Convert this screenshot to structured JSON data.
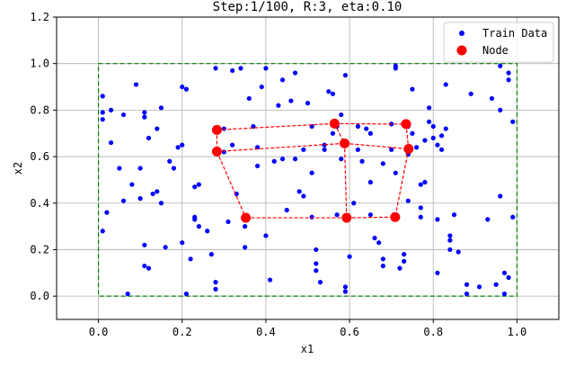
{
  "chart_data": {
    "type": "scatter",
    "title": "Step:1/100, R:3, eta:0.10",
    "xlabel": "x1",
    "ylabel": "x2",
    "xlim": [
      -0.1,
      1.1
    ],
    "ylim": [
      -0.1,
      1.2
    ],
    "xticks": [
      "0.0",
      "0.2",
      "0.4",
      "0.6",
      "0.8",
      "1.0"
    ],
    "xtick_values": [
      0.0,
      0.2,
      0.4,
      0.6,
      0.8,
      1.0
    ],
    "yticks": [
      "0.0",
      "0.2",
      "0.4",
      "0.6",
      "0.8",
      "1.0",
      "1.2"
    ],
    "ytick_values": [
      0.0,
      0.2,
      0.4,
      0.6,
      0.8,
      1.0,
      1.2
    ],
    "grid": true,
    "legend_position": "top-right",
    "boundary": {
      "x": [
        0,
        1
      ],
      "y": [
        0,
        1
      ],
      "color": "#008000"
    },
    "series": [
      {
        "name": "Train Data",
        "color": "#0000ff",
        "points": [
          [
            0.01,
            0.86
          ],
          [
            0.01,
            0.79
          ],
          [
            0.01,
            0.76
          ],
          [
            0.03,
            0.8
          ],
          [
            0.03,
            0.66
          ],
          [
            0.05,
            0.55
          ],
          [
            0.06,
            0.78
          ],
          [
            0.06,
            0.41
          ],
          [
            0.08,
            0.48
          ],
          [
            0.09,
            0.91
          ],
          [
            0.1,
            0.55
          ],
          [
            0.1,
            0.42
          ],
          [
            0.11,
            0.79
          ],
          [
            0.11,
            0.77
          ],
          [
            0.12,
            0.68
          ],
          [
            0.13,
            0.44
          ],
          [
            0.14,
            0.45
          ],
          [
            0.15,
            0.81
          ],
          [
            0.15,
            0.4
          ],
          [
            0.16,
            0.21
          ],
          [
            0.11,
            0.22
          ],
          [
            0.11,
            0.13
          ],
          [
            0.12,
            0.12
          ],
          [
            0.17,
            0.58
          ],
          [
            0.18,
            0.55
          ],
          [
            0.19,
            0.64
          ],
          [
            0.2,
            0.65
          ],
          [
            0.2,
            0.9
          ],
          [
            0.21,
            0.89
          ],
          [
            0.2,
            0.23
          ],
          [
            0.21,
            0.01
          ],
          [
            0.02,
            0.36
          ],
          [
            0.01,
            0.28
          ],
          [
            0.07,
            0.01
          ],
          [
            0.22,
            0.16
          ],
          [
            0.23,
            0.34
          ],
          [
            0.23,
            0.33
          ],
          [
            0.23,
            0.47
          ],
          [
            0.24,
            0.48
          ],
          [
            0.24,
            0.3
          ],
          [
            0.26,
            0.28
          ],
          [
            0.27,
            0.18
          ],
          [
            0.28,
            0.98
          ],
          [
            0.28,
            0.06
          ],
          [
            0.28,
            0.03
          ],
          [
            0.3,
            0.72
          ],
          [
            0.3,
            0.62
          ],
          [
            0.31,
            0.32
          ],
          [
            0.32,
            0.65
          ],
          [
            0.32,
            0.97
          ],
          [
            0.33,
            0.44
          ],
          [
            0.34,
            0.98
          ],
          [
            0.35,
            0.3
          ],
          [
            0.35,
            0.21
          ],
          [
            0.36,
            0.85
          ],
          [
            0.37,
            0.73
          ],
          [
            0.38,
            0.64
          ],
          [
            0.38,
            0.56
          ],
          [
            0.39,
            0.9
          ],
          [
            0.4,
            0.98
          ],
          [
            0.4,
            0.26
          ],
          [
            0.41,
            0.07
          ],
          [
            0.42,
            0.58
          ],
          [
            0.43,
            0.82
          ],
          [
            0.44,
            0.93
          ],
          [
            0.44,
            0.59
          ],
          [
            0.45,
            0.37
          ],
          [
            0.46,
            0.84
          ],
          [
            0.47,
            0.96
          ],
          [
            0.47,
            0.59
          ],
          [
            0.48,
            0.45
          ],
          [
            0.49,
            0.63
          ],
          [
            0.49,
            0.43
          ],
          [
            0.5,
            0.83
          ],
          [
            0.51,
            0.53
          ],
          [
            0.51,
            0.34
          ],
          [
            0.52,
            0.2
          ],
          [
            0.52,
            0.14
          ],
          [
            0.52,
            0.11
          ],
          [
            0.53,
            0.06
          ],
          [
            0.54,
            0.65
          ],
          [
            0.54,
            0.63
          ],
          [
            0.55,
            0.88
          ],
          [
            0.56,
            0.87
          ],
          [
            0.56,
            0.7
          ],
          [
            0.57,
            0.73
          ],
          [
            0.57,
            0.35
          ],
          [
            0.58,
            0.59
          ],
          [
            0.58,
            0.78
          ],
          [
            0.59,
            0.95
          ],
          [
            0.59,
            0.02
          ],
          [
            0.59,
            0.04
          ],
          [
            0.6,
            0.17
          ],
          [
            0.61,
            0.4
          ],
          [
            0.62,
            0.63
          ],
          [
            0.62,
            0.73
          ],
          [
            0.63,
            0.58
          ],
          [
            0.64,
            0.72
          ],
          [
            0.65,
            0.35
          ],
          [
            0.65,
            0.7
          ],
          [
            0.65,
            0.49
          ],
          [
            0.66,
            0.25
          ],
          [
            0.67,
            0.23
          ],
          [
            0.68,
            0.16
          ],
          [
            0.68,
            0.13
          ],
          [
            0.68,
            0.57
          ],
          [
            0.7,
            0.74
          ],
          [
            0.7,
            0.63
          ],
          [
            0.71,
            0.53
          ],
          [
            0.71,
            0.99
          ],
          [
            0.71,
            0.98
          ],
          [
            0.72,
            0.12
          ],
          [
            0.73,
            0.18
          ],
          [
            0.73,
            0.15
          ],
          [
            0.74,
            0.61
          ],
          [
            0.74,
            0.41
          ],
          [
            0.75,
            0.89
          ],
          [
            0.75,
            0.7
          ],
          [
            0.76,
            0.64
          ],
          [
            0.77,
            0.48
          ],
          [
            0.77,
            0.38
          ],
          [
            0.77,
            0.34
          ],
          [
            0.78,
            0.49
          ],
          [
            0.79,
            0.81
          ],
          [
            0.79,
            0.75
          ],
          [
            0.8,
            0.73
          ],
          [
            0.8,
            0.68
          ],
          [
            0.81,
            0.33
          ],
          [
            0.81,
            0.1
          ],
          [
            0.81,
            0.65
          ],
          [
            0.82,
            0.63
          ],
          [
            0.83,
            0.91
          ],
          [
            0.84,
            0.26
          ],
          [
            0.84,
            0.24
          ],
          [
            0.84,
            0.2
          ],
          [
            0.85,
            0.35
          ],
          [
            0.86,
            0.19
          ],
          [
            0.88,
            0.05
          ],
          [
            0.88,
            0.01
          ],
          [
            0.89,
            0.87
          ],
          [
            0.91,
            0.04
          ],
          [
            0.93,
            0.33
          ],
          [
            0.94,
            0.85
          ],
          [
            0.95,
            0.05
          ],
          [
            0.96,
            0.8
          ],
          [
            0.96,
            0.43
          ],
          [
            0.97,
            0.01
          ],
          [
            0.97,
            0.1
          ],
          [
            0.98,
            0.08
          ],
          [
            0.98,
            0.96
          ],
          [
            0.98,
            0.93
          ],
          [
            0.99,
            0.75
          ],
          [
            0.99,
            0.34
          ],
          [
            0.83,
            0.72
          ],
          [
            0.82,
            0.69
          ],
          [
            0.78,
            0.67
          ],
          [
            0.74,
            0.73
          ],
          [
            0.51,
            0.73
          ],
          [
            0.14,
            0.72
          ],
          [
            0.96,
            0.99
          ]
        ]
      },
      {
        "name": "Node",
        "color": "#ff0000",
        "points": [
          [
            0.283,
            0.715
          ],
          [
            0.564,
            0.742
          ],
          [
            0.735,
            0.74
          ],
          [
            0.283,
            0.622
          ],
          [
            0.588,
            0.657
          ],
          [
            0.741,
            0.633
          ],
          [
            0.352,
            0.337
          ],
          [
            0.593,
            0.337
          ],
          [
            0.709,
            0.34
          ]
        ],
        "grid_shape": [
          3,
          3
        ]
      }
    ]
  }
}
